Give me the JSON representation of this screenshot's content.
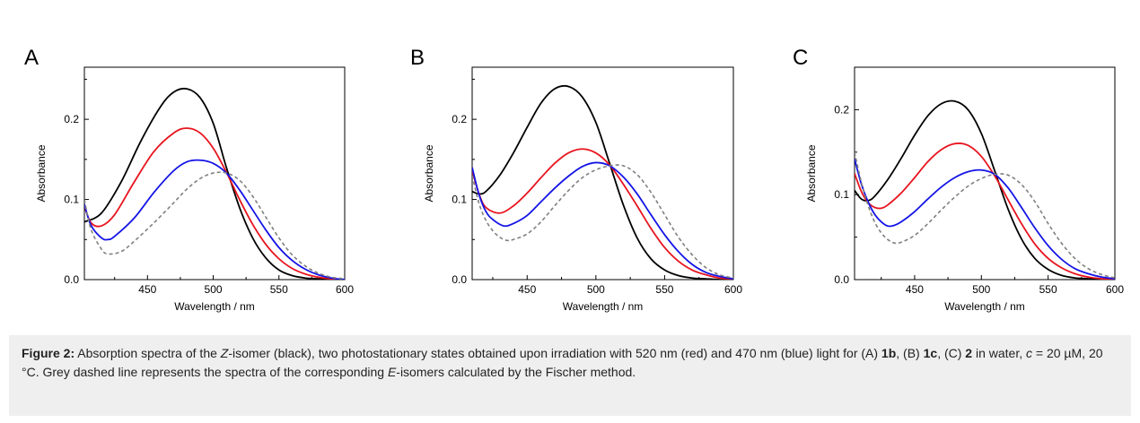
{
  "chart_data": [
    {
      "type": "line",
      "panel_label": "A",
      "xlabel": "Wavelength / nm",
      "ylabel": "Absorbance",
      "xlim": [
        402,
        600
      ],
      "ylim": [
        0,
        0.265
      ],
      "xticks": [
        "450",
        "500",
        "550",
        "600"
      ],
      "yticks": [
        "0.0",
        "0.1",
        "0.2"
      ],
      "series": [
        {
          "color": "#000000",
          "dashed": false,
          "x": [
            402,
            415,
            430,
            445,
            460,
            470,
            480,
            490,
            500,
            510,
            520,
            530,
            540,
            550,
            560,
            570,
            580,
            590,
            600
          ],
          "y": [
            0.072,
            0.083,
            0.122,
            0.173,
            0.216,
            0.234,
            0.238,
            0.227,
            0.195,
            0.14,
            0.09,
            0.052,
            0.027,
            0.012,
            0.005,
            0.002,
            0.001,
            0.0,
            0.0
          ]
        },
        {
          "color": "#e8141e",
          "dashed": false,
          "x": [
            402,
            407,
            415,
            425,
            440,
            455,
            470,
            480,
            490,
            500,
            510,
            520,
            530,
            540,
            550,
            560,
            570,
            580,
            590,
            600
          ],
          "y": [
            0.092,
            0.071,
            0.067,
            0.081,
            0.122,
            0.16,
            0.183,
            0.189,
            0.183,
            0.164,
            0.134,
            0.1,
            0.069,
            0.044,
            0.026,
            0.014,
            0.007,
            0.003,
            0.001,
            0.0
          ]
        },
        {
          "color": "#1414e6",
          "dashed": false,
          "x": [
            402,
            407,
            415,
            420,
            425,
            440,
            455,
            470,
            480,
            490,
            500,
            510,
            520,
            530,
            540,
            550,
            560,
            570,
            580,
            590,
            600
          ],
          "y": [
            0.094,
            0.068,
            0.052,
            0.05,
            0.054,
            0.077,
            0.109,
            0.136,
            0.147,
            0.149,
            0.145,
            0.133,
            0.112,
            0.087,
            0.062,
            0.04,
            0.024,
            0.013,
            0.006,
            0.002,
            0.0
          ]
        },
        {
          "color": "#808080",
          "dashed": true,
          "x": [
            402,
            407,
            415,
            420,
            430,
            440,
            455,
            470,
            480,
            490,
            500,
            510,
            520,
            530,
            540,
            550,
            560,
            570,
            580,
            590,
            600
          ],
          "y": [
            0.1,
            0.063,
            0.038,
            0.032,
            0.035,
            0.048,
            0.071,
            0.096,
            0.113,
            0.126,
            0.133,
            0.133,
            0.124,
            0.104,
            0.078,
            0.052,
            0.031,
            0.017,
            0.008,
            0.003,
            0.001
          ]
        }
      ]
    },
    {
      "type": "line",
      "panel_label": "B",
      "xlabel": "Wavelength / nm",
      "ylabel": "Absorbance",
      "xlim": [
        410,
        600
      ],
      "ylim": [
        0,
        0.265
      ],
      "xticks": [
        "450",
        "500",
        "550",
        "600"
      ],
      "yticks": [
        "0.0",
        "0.1",
        "0.2"
      ],
      "series": [
        {
          "color": "#000000",
          "dashed": false,
          "x": [
            410,
            415,
            420,
            430,
            440,
            450,
            460,
            470,
            480,
            490,
            500,
            510,
            520,
            530,
            540,
            550,
            560,
            570,
            580,
            590,
            600
          ],
          "y": [
            0.11,
            0.107,
            0.11,
            0.13,
            0.158,
            0.19,
            0.22,
            0.238,
            0.241,
            0.228,
            0.196,
            0.145,
            0.093,
            0.052,
            0.026,
            0.012,
            0.005,
            0.002,
            0.001,
            0.0,
            0.0
          ]
        },
        {
          "color": "#e8141e",
          "dashed": false,
          "x": [
            410,
            415,
            420,
            430,
            440,
            450,
            460,
            470,
            480,
            490,
            500,
            510,
            520,
            530,
            540,
            550,
            560,
            570,
            580,
            590,
            600
          ],
          "y": [
            0.136,
            0.107,
            0.09,
            0.083,
            0.092,
            0.108,
            0.127,
            0.145,
            0.158,
            0.163,
            0.158,
            0.143,
            0.119,
            0.092,
            0.064,
            0.04,
            0.023,
            0.012,
            0.006,
            0.002,
            0.001
          ]
        },
        {
          "color": "#1414e6",
          "dashed": false,
          "x": [
            410,
            415,
            420,
            425,
            433,
            440,
            450,
            460,
            470,
            480,
            490,
            500,
            510,
            520,
            530,
            540,
            550,
            560,
            570,
            580,
            590,
            600
          ],
          "y": [
            0.14,
            0.106,
            0.085,
            0.075,
            0.067,
            0.07,
            0.08,
            0.097,
            0.114,
            0.129,
            0.141,
            0.146,
            0.142,
            0.128,
            0.107,
            0.081,
            0.056,
            0.035,
            0.019,
            0.009,
            0.004,
            0.001
          ]
        },
        {
          "color": "#808080",
          "dashed": true,
          "x": [
            410,
            415,
            420,
            425,
            430,
            435,
            440,
            450,
            460,
            470,
            480,
            490,
            500,
            510,
            520,
            530,
            540,
            550,
            560,
            570,
            580,
            590,
            600
          ],
          "y": [
            0.13,
            0.095,
            0.074,
            0.061,
            0.053,
            0.049,
            0.05,
            0.057,
            0.072,
            0.092,
            0.111,
            0.127,
            0.137,
            0.142,
            0.142,
            0.131,
            0.109,
            0.081,
            0.053,
            0.031,
            0.015,
            0.006,
            0.002
          ]
        }
      ]
    },
    {
      "type": "line",
      "panel_label": "C",
      "xlabel": "Wavelength / nm",
      "ylabel": "Absorbance",
      "xlim": [
        405,
        600
      ],
      "ylim": [
        0,
        0.25
      ],
      "xticks": [
        "450",
        "500",
        "550",
        "600"
      ],
      "yticks": [
        "0.0",
        "0.1",
        "0.2"
      ],
      "series": [
        {
          "color": "#000000",
          "dashed": false,
          "x": [
            405,
            410,
            415,
            420,
            430,
            440,
            450,
            460,
            470,
            480,
            490,
            500,
            510,
            520,
            530,
            540,
            550,
            560,
            570,
            580,
            590,
            600
          ],
          "y": [
            0.105,
            0.095,
            0.093,
            0.098,
            0.118,
            0.143,
            0.17,
            0.193,
            0.207,
            0.21,
            0.2,
            0.172,
            0.128,
            0.083,
            0.048,
            0.025,
            0.012,
            0.005,
            0.002,
            0.001,
            0.0,
            0.0
          ]
        },
        {
          "color": "#e8141e",
          "dashed": false,
          "x": [
            405,
            410,
            415,
            420,
            425,
            430,
            440,
            450,
            460,
            470,
            480,
            490,
            500,
            510,
            520,
            530,
            540,
            550,
            560,
            570,
            580,
            590,
            600
          ],
          "y": [
            0.125,
            0.104,
            0.091,
            0.085,
            0.084,
            0.088,
            0.102,
            0.12,
            0.139,
            0.153,
            0.16,
            0.158,
            0.145,
            0.122,
            0.094,
            0.066,
            0.042,
            0.025,
            0.014,
            0.007,
            0.003,
            0.001,
            0.0
          ]
        },
        {
          "color": "#1414e6",
          "dashed": false,
          "x": [
            405,
            410,
            415,
            420,
            425,
            430,
            435,
            440,
            450,
            460,
            470,
            480,
            490,
            500,
            510,
            520,
            530,
            540,
            550,
            560,
            570,
            580,
            590,
            600
          ],
          "y": [
            0.142,
            0.113,
            0.092,
            0.077,
            0.068,
            0.063,
            0.064,
            0.068,
            0.08,
            0.095,
            0.109,
            0.12,
            0.127,
            0.129,
            0.124,
            0.108,
            0.085,
            0.061,
            0.04,
            0.024,
            0.013,
            0.007,
            0.003,
            0.001
          ]
        },
        {
          "color": "#808080",
          "dashed": true,
          "x": [
            405,
            410,
            415,
            420,
            425,
            430,
            435,
            440,
            450,
            460,
            470,
            480,
            490,
            500,
            510,
            520,
            530,
            540,
            550,
            560,
            570,
            580,
            590,
            600
          ],
          "y": [
            0.15,
            0.115,
            0.088,
            0.068,
            0.055,
            0.047,
            0.043,
            0.044,
            0.052,
            0.066,
            0.082,
            0.097,
            0.11,
            0.119,
            0.124,
            0.123,
            0.112,
            0.092,
            0.066,
            0.043,
            0.025,
            0.013,
            0.006,
            0.002
          ]
        }
      ]
    }
  ],
  "caption": {
    "label": "Figure 2:",
    "t1": " Absorption spectra of the ",
    "z": "Z",
    "t2": "-isomer (black), two photostationary states obtained upon irradiation with 520 nm (red) and 470 nm (blue) light for (A) ",
    "c1": "1b",
    "t3": ", (B) ",
    "c2": "1c",
    "t4": ", (C) ",
    "c3": "2",
    "t5": " in water, ",
    "cvar": "c",
    "t6": " = 20 µM, 20 °C. Grey dashed line represents the spectra of the corresponding ",
    "e": "E",
    "t7": "-isomers calculated by the Fischer method."
  }
}
